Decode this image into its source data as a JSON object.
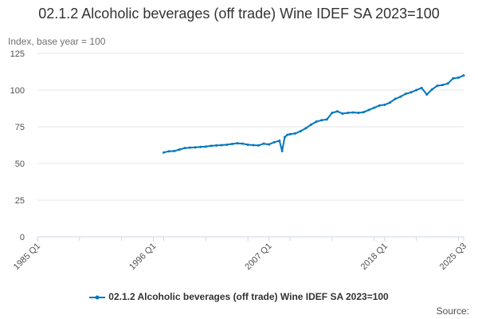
{
  "chart_data": {
    "type": "line",
    "title": "02.1.2 Alcoholic beverages (off trade) Wine IDEF SA 2023=100",
    "ylabel": "Index, base year = 100",
    "xlabel": "",
    "ylim": [
      0,
      125
    ],
    "yticks": [
      "0",
      "25",
      "50",
      "75",
      "100",
      "125"
    ],
    "xticks": [
      "1985 Q1",
      "1996 Q1",
      "2007 Q1",
      "2018 Q1",
      "2025 Q3"
    ],
    "x_quarter_range": [
      "1985 Q1",
      "2025 Q3"
    ],
    "grid": true,
    "legend_position": "bottom",
    "series": [
      {
        "name": "02.1.2 Alcoholic beverages (off trade) Wine IDEF SA 2023=100",
        "color": "#0077bb",
        "x": [
          "1997 Q1",
          "1997 Q3",
          "1998 Q1",
          "1998 Q3",
          "1999 Q1",
          "1999 Q3",
          "2000 Q1",
          "2000 Q3",
          "2001 Q1",
          "2001 Q3",
          "2002 Q1",
          "2002 Q3",
          "2003 Q1",
          "2003 Q3",
          "2004 Q1",
          "2004 Q3",
          "2005 Q1",
          "2005 Q3",
          "2006 Q1",
          "2006 Q3",
          "2007 Q1",
          "2007 Q3",
          "2008 Q1",
          "2008 Q2",
          "2008 Q3",
          "2008 Q4",
          "2009 Q1",
          "2009 Q3",
          "2010 Q1",
          "2010 Q3",
          "2011 Q1",
          "2011 Q3",
          "2012 Q1",
          "2012 Q3",
          "2013 Q1",
          "2013 Q3",
          "2014 Q1",
          "2014 Q3",
          "2015 Q1",
          "2015 Q3",
          "2016 Q1",
          "2016 Q3",
          "2017 Q1",
          "2017 Q3",
          "2018 Q1",
          "2018 Q3",
          "2019 Q1",
          "2019 Q3",
          "2020 Q1",
          "2020 Q3",
          "2021 Q1",
          "2021 Q3",
          "2022 Q1",
          "2022 Q3",
          "2023 Q1",
          "2023 Q3",
          "2024 Q1",
          "2024 Q3",
          "2025 Q1",
          "2025 Q3"
        ],
        "values": [
          57.5,
          58.3,
          58.5,
          59.5,
          60.5,
          60.8,
          61.0,
          61.3,
          61.5,
          62.0,
          62.3,
          62.5,
          62.8,
          63.3,
          63.8,
          63.5,
          62.8,
          62.5,
          62.3,
          63.5,
          63.0,
          64.5,
          65.5,
          58.5,
          68.0,
          69.5,
          70.0,
          70.5,
          72.0,
          74.0,
          76.5,
          78.5,
          79.5,
          80.0,
          84.5,
          85.5,
          84.0,
          84.5,
          84.8,
          84.5,
          85.0,
          86.5,
          88.0,
          89.5,
          90.0,
          91.5,
          94.0,
          95.5,
          97.5,
          98.5,
          100.0,
          101.5,
          97.0,
          100.5,
          103.0,
          103.5,
          104.5,
          108.0,
          108.5,
          110.0
        ]
      }
    ]
  },
  "source_label": "Source:"
}
